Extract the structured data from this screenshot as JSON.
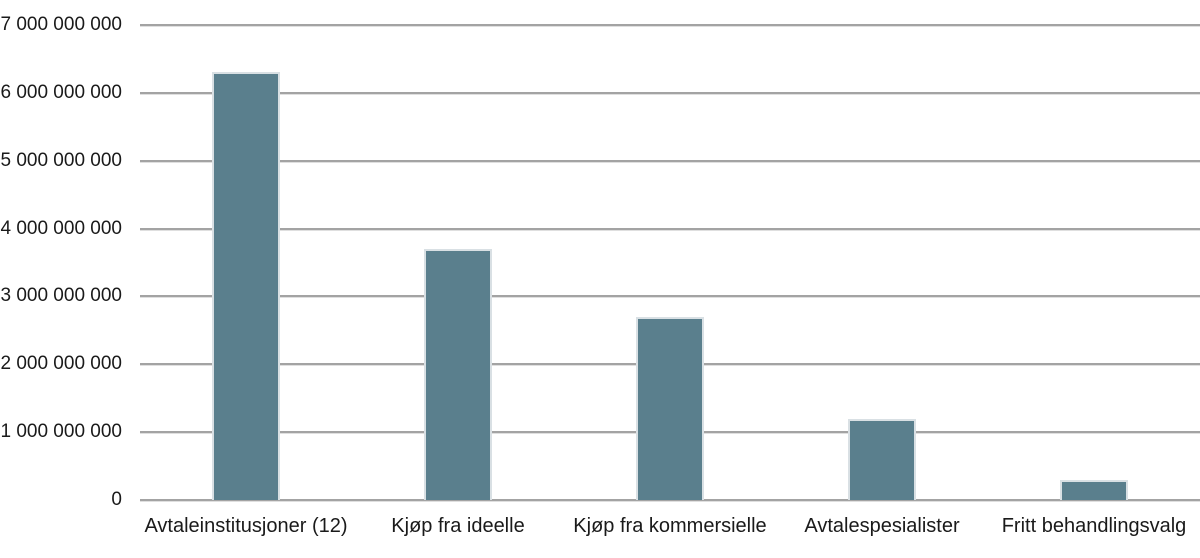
{
  "chart_data": {
    "type": "bar",
    "categories": [
      "Avtaleinstitusjoner (12)",
      "Kjøp fra ideelle",
      "Kjøp fra kommersielle",
      "Avtalespesialister",
      "Fritt behandlingsvalg"
    ],
    "values": [
      6300000000,
      3700000000,
      2700000000,
      1200000000,
      300000000
    ],
    "title": "",
    "xlabel": "",
    "ylabel": "",
    "ylim": [
      0,
      7000000000
    ],
    "ytick_interval": 1000000000,
    "ytick_labels": [
      "0",
      "1 000 000 000",
      "2 000 000 000",
      "3 000 000 000",
      "4 000 000 000",
      "5 000 000 000",
      "6 000 000 000",
      "7 000 000 000"
    ],
    "grid": true,
    "legend": false,
    "colors": {
      "bar_fill": "#5a7f8d",
      "bar_border": "#d9e0e4",
      "gridline": "#a3a3a3",
      "text": "#1a1a1a",
      "background": "#ffffff"
    }
  }
}
